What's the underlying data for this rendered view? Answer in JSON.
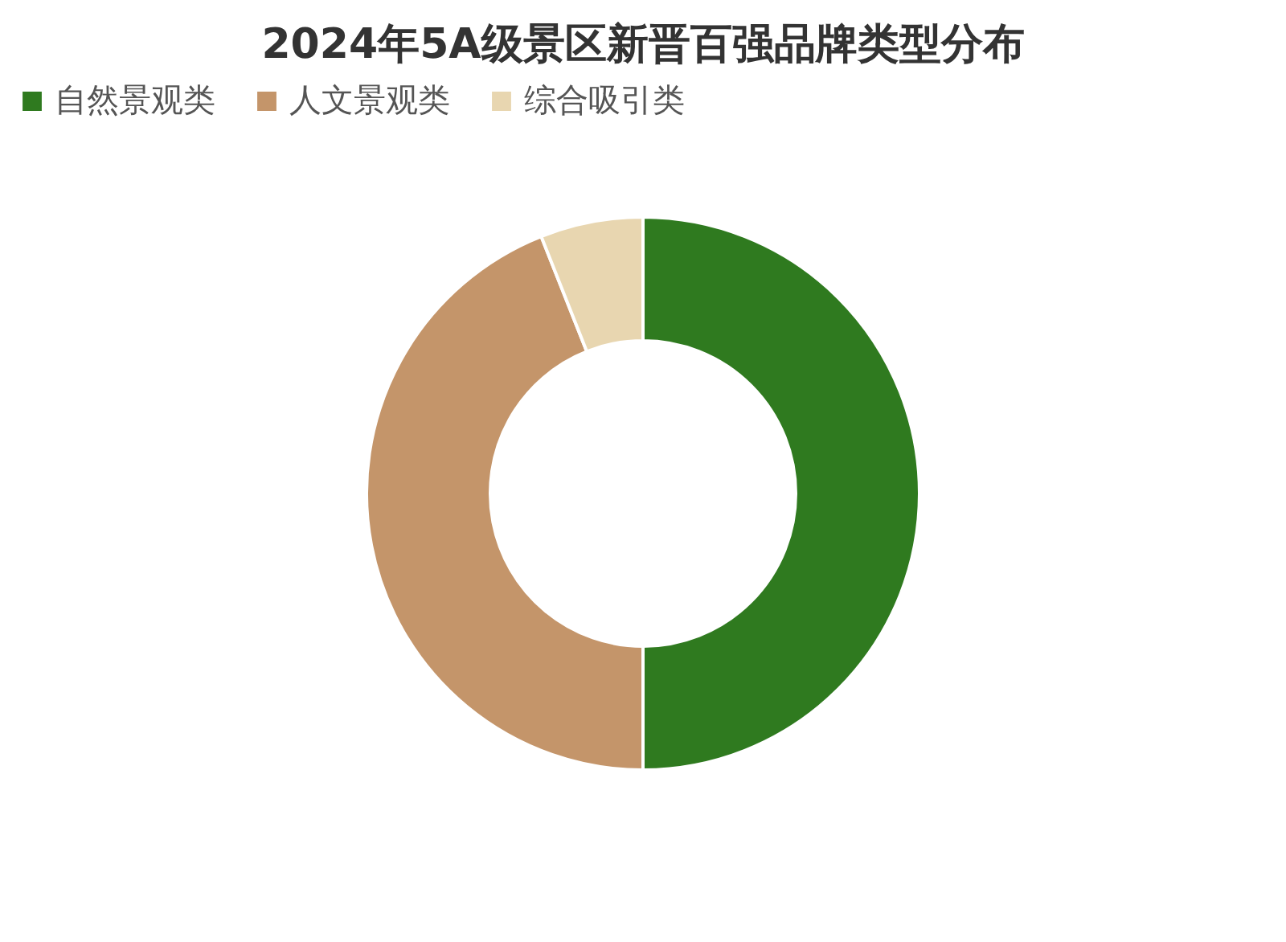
{
  "chart_data": {
    "type": "donut",
    "title": "2024年5A级景区新晋百强品牌类型分布",
    "categories": [
      "自然景观类",
      "人文景观类",
      "综合吸引类"
    ],
    "values": [
      50,
      44,
      6
    ],
    "colors": [
      "#2f7a1f",
      "#c4956a",
      "#e8d6b0"
    ],
    "legend": "top"
  }
}
